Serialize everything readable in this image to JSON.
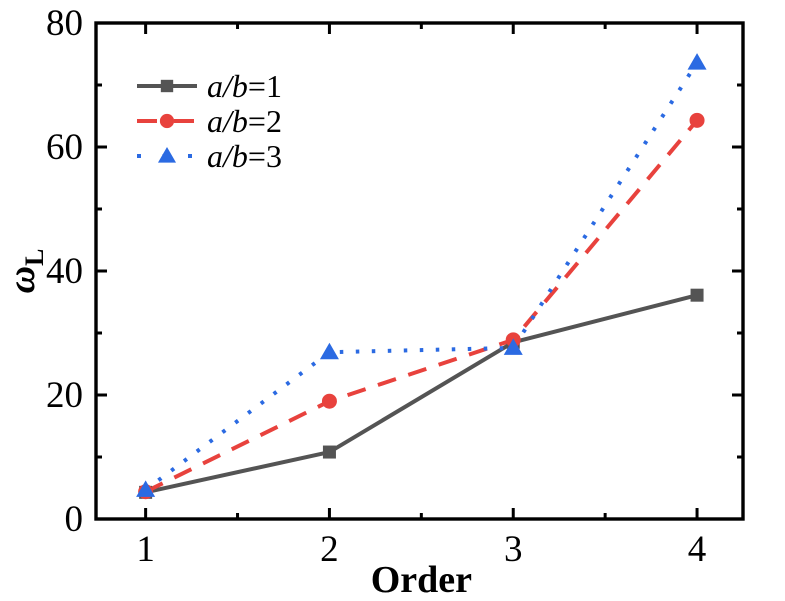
{
  "figure": {
    "xlabel": "Order",
    "ylabel": "ω_L",
    "background": "#ffffff",
    "axis_color": "#000000"
  },
  "chart_data": {
    "type": "line",
    "x": [
      1,
      2,
      3,
      4
    ],
    "series": [
      {
        "name": "a/b=1",
        "values": [
          4.3,
          10.8,
          28.5,
          36.1
        ],
        "color": "#545454",
        "line_style": "solid",
        "marker": "square"
      },
      {
        "name": "a/b=2",
        "values": [
          4.4,
          19.0,
          28.9,
          64.3
        ],
        "color": "#e8423d",
        "line_style": "dashed",
        "marker": "circle"
      },
      {
        "name": "a/b=3",
        "values": [
          4.7,
          26.9,
          27.6,
          73.6
        ],
        "color": "#2b6ae2",
        "line_style": "dotted",
        "marker": "triangle"
      }
    ],
    "title": "",
    "xlabel": "Order",
    "ylabel": "ω_L",
    "xlim": [
      0.73,
      4.25
    ],
    "ylim": [
      0,
      80
    ],
    "x_major_ticks": [
      1,
      2,
      3,
      4
    ],
    "x_minor_ticks": [
      1.5,
      2.5,
      3.5
    ],
    "y_major_ticks": [
      0,
      20,
      40,
      60,
      80
    ],
    "y_minor_ticks": [
      10,
      30,
      50,
      70
    ],
    "grid": false,
    "legend_position": "upper-left-inside",
    "legend_items": [
      "a/b=1",
      "a/b=2",
      "a/b=3"
    ]
  }
}
